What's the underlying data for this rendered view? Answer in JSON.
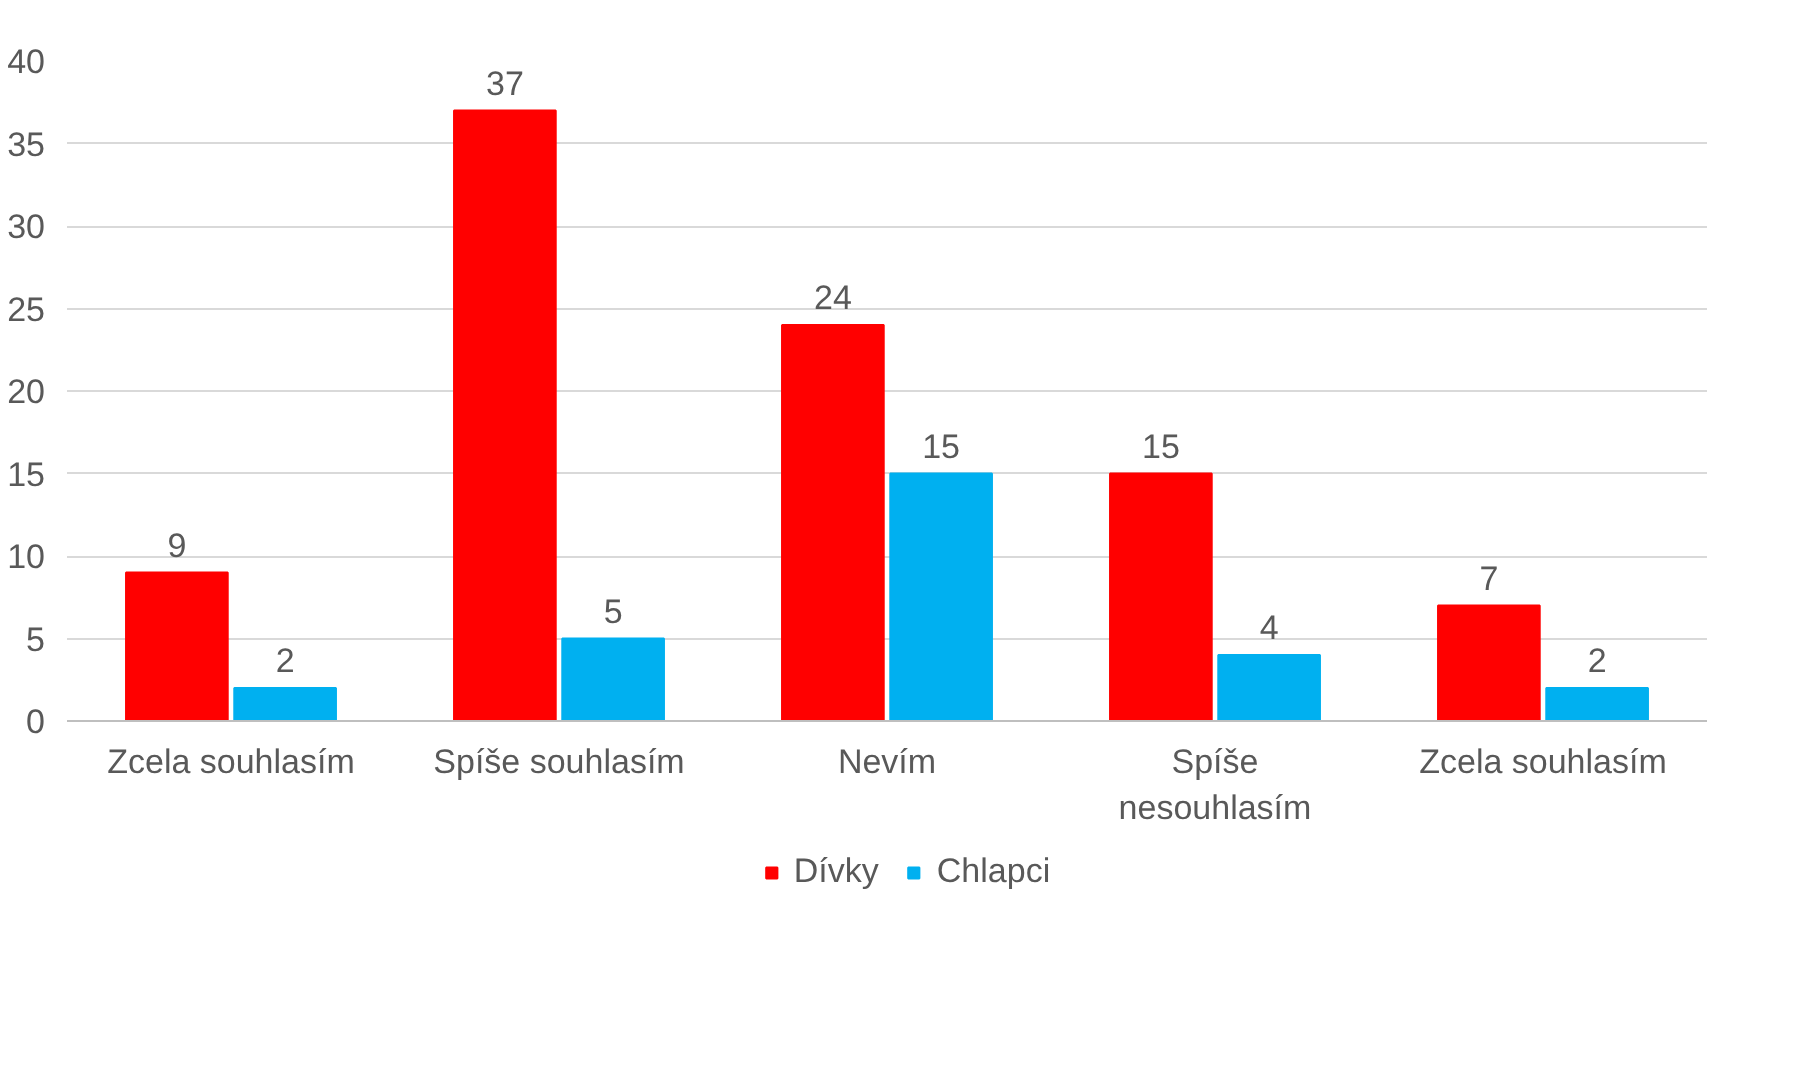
{
  "chart_data": {
    "type": "bar",
    "categories": [
      "Zcela souhlasím",
      "Spíše souhlasím",
      "Nevím",
      "Spíše nesouhlasím",
      "Zcela souhlasím"
    ],
    "series": [
      {
        "name": "Dívky",
        "color": "#ff0000",
        "values": [
          9,
          37,
          24,
          15,
          7
        ]
      },
      {
        "name": "Chlapci",
        "color": "#00b0f0",
        "values": [
          2,
          5,
          15,
          4,
          2
        ]
      }
    ],
    "ylim": [
      0,
      40
    ],
    "yticks": [
      0,
      5,
      10,
      15,
      20,
      25,
      30,
      35,
      40
    ],
    "grid": "y",
    "legend": "bottom",
    "data_labels": true
  }
}
